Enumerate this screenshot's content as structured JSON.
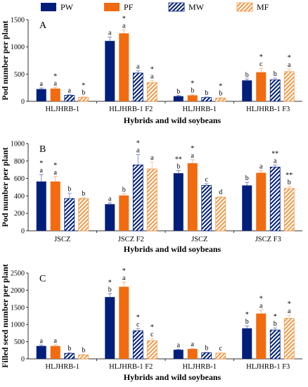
{
  "legend": [
    {
      "name": "PW",
      "fill": "#001f7a",
      "pattern": "solid"
    },
    {
      "name": "PF",
      "fill": "#f26b0f",
      "pattern": "solid"
    },
    {
      "name": "MW",
      "fill": "#001f7a",
      "pattern": "hatch"
    },
    {
      "name": "MF",
      "fill": "#f29a4a",
      "pattern": "hatch"
    }
  ],
  "colors": {
    "navy": "#001f7a",
    "orange": "#f26b0f",
    "light_orange": "#f29a4a",
    "axis": "#333333"
  },
  "chart_data": [
    {
      "type": "bar",
      "panel_label": "A",
      "ylabel": "Pod number per plant",
      "xlabel": "Hybrids and wild soybeans",
      "ylim": [
        0,
        1500
      ],
      "yticks": [
        0,
        500,
        1000,
        1500
      ],
      "categories": [
        "HLJHRB-1",
        "HLJHRB-1 F2",
        "HLJHRB-1",
        "HLJHRB-1 F3"
      ],
      "series": [
        {
          "name": "PW",
          "values": [
            225,
            1110,
            95,
            385
          ],
          "errors": [
            20,
            70,
            10,
            25
          ]
        },
        {
          "name": "PF",
          "values": [
            235,
            1250,
            110,
            535
          ],
          "errors": [
            20,
            60,
            10,
            70
          ]
        },
        {
          "name": "MW",
          "values": [
            110,
            520,
            70,
            395
          ],
          "errors": [
            15,
            40,
            10,
            30
          ]
        },
        {
          "name": "MF",
          "values": [
            75,
            345,
            60,
            545
          ],
          "errors": [
            10,
            35,
            10,
            50
          ]
        }
      ],
      "annotations": [
        [
          "a",
          "a",
          "b",
          "b"
        ],
        [
          "*\na",
          "*\na",
          "*\nb",
          "*\nc"
        ],
        [
          "a",
          "a",
          "b",
          "b"
        ],
        [
          "*\nb",
          "*\na",
          "*\nb",
          "*\na"
        ]
      ]
    },
    {
      "type": "bar",
      "panel_label": "B",
      "ylabel": "Pod number per plant",
      "xlabel": "Hybrids and wild soybeans",
      "ylim": [
        0,
        1000
      ],
      "yticks": [
        0,
        200,
        400,
        600,
        800,
        1000
      ],
      "categories": [
        "JSCZ",
        "JSCZ F2",
        "JSCZ",
        "JSCZ F3"
      ],
      "series": [
        {
          "name": "PW",
          "values": [
            565,
            305,
            660,
            520
          ],
          "errors": [
            80,
            15,
            30,
            35
          ]
        },
        {
          "name": "PF",
          "values": [
            565,
            405,
            775,
            665
          ],
          "errors": [
            55,
            20,
            40,
            25
          ]
        },
        {
          "name": "MW",
          "values": [
            370,
            755,
            520,
            730
          ],
          "errors": [
            60,
            120,
            20,
            25
          ]
        },
        {
          "name": "MF",
          "values": [
            370,
            710,
            385,
            485
          ],
          "errors": [
            10,
            80,
            10,
            25
          ]
        }
      ],
      "annotations": [
        [
          "*\na",
          "a",
          "**\nb",
          "b"
        ],
        [
          "*\na",
          "b",
          "*\na",
          "a"
        ],
        [
          "b",
          "*\na",
          "c",
          "**\na"
        ],
        [
          "b",
          "a",
          "d",
          "**\nb"
        ]
      ]
    },
    {
      "type": "bar",
      "panel_label": "C",
      "ylabel": "Filled seed number per plant",
      "xlabel": "Hybrids and wild soybeans",
      "ylim": [
        0,
        2500
      ],
      "yticks": [
        0,
        500,
        1000,
        1500,
        2000,
        2500
      ],
      "categories": [
        "HLJHRB-1",
        "HLJHRB-1 F2",
        "HLJHRB-1",
        "HLJHRB-1 F3"
      ],
      "series": [
        {
          "name": "PW",
          "values": [
            375,
            1800,
            265,
            890
          ],
          "errors": [
            25,
            100,
            15,
            70
          ]
        },
        {
          "name": "PF",
          "values": [
            375,
            2100,
            290,
            1320
          ],
          "errors": [
            30,
            130,
            15,
            100
          ]
        },
        {
          "name": "MW",
          "values": [
            160,
            820,
            180,
            840
          ],
          "errors": [
            20,
            65,
            15,
            60
          ]
        },
        {
          "name": "MF",
          "values": [
            115,
            530,
            165,
            1180
          ],
          "errors": [
            15,
            60,
            15,
            90
          ]
        }
      ],
      "annotations": [
        [
          "a",
          "*\nb",
          "a",
          "*\nb"
        ],
        [
          "a",
          "*\na",
          "a",
          "*\na"
        ],
        [
          "b",
          "*\nc",
          "b",
          "*\nb"
        ],
        [
          "b",
          "*\nc",
          "c",
          "*\na"
        ]
      ]
    }
  ]
}
